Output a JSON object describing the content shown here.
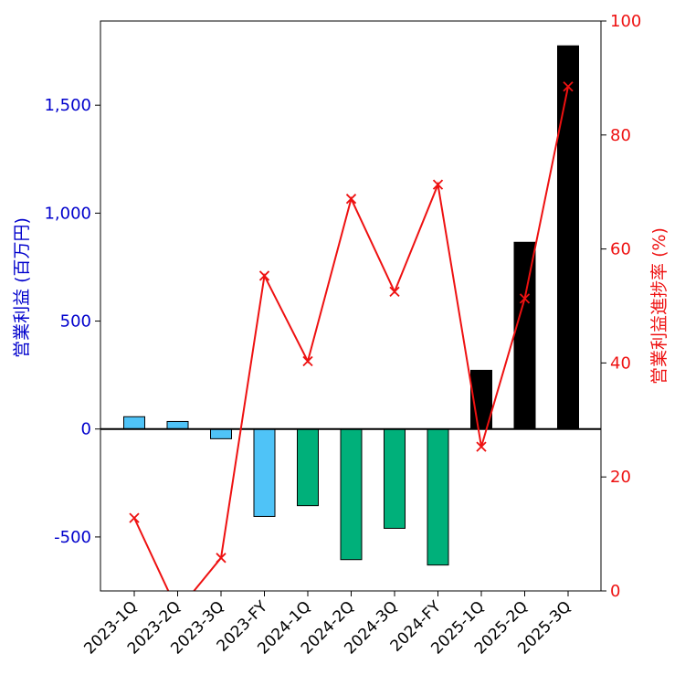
{
  "chart_data": {
    "type": "bar+line",
    "categories": [
      "2023-1Q",
      "2023-2Q",
      "2023-3Q",
      "2023-FY",
      "2024-1Q",
      "2024-2Q",
      "2024-3Q",
      "2024-FY",
      "2025-1Q",
      "2025-2Q",
      "2025-3Q"
    ],
    "bars": {
      "axis": "left",
      "values": [
        57,
        35,
        -45,
        -405,
        -355,
        -605,
        -460,
        -630,
        272,
        865,
        1775
      ],
      "colors": [
        "#4fc3f7",
        "#4fc3f7",
        "#4fc3f7",
        "#4fc3f7",
        "#00b07a",
        "#00b07a",
        "#00b07a",
        "#00b07a",
        "#000000",
        "#000000",
        "#000000"
      ]
    },
    "line": {
      "axis": "right",
      "values": [
        12.8,
        -3.5,
        5.8,
        55.3,
        40.3,
        68.8,
        52.5,
        71.3,
        25.3,
        51.3,
        88.5
      ],
      "color": "#ee1111",
      "marker": "x"
    },
    "left_axis": {
      "label": "営業利益 (百万円)",
      "ylim": [
        -750,
        1890
      ],
      "ticks": [
        -500,
        0,
        500,
        1000,
        1500
      ],
      "tick_labels": [
        "-500",
        "0",
        "500",
        "1,000",
        "1,500"
      ],
      "color": "#0000cc"
    },
    "right_axis": {
      "label": "営業利益進捗率 (%)",
      "ylim": [
        0,
        100
      ],
      "ticks": [
        0,
        20,
        40,
        60,
        80,
        100
      ],
      "tick_labels": [
        "0",
        "20",
        "40",
        "60",
        "80",
        "100"
      ],
      "color": "#ee1111"
    },
    "zero_line": true,
    "grid": false
  }
}
